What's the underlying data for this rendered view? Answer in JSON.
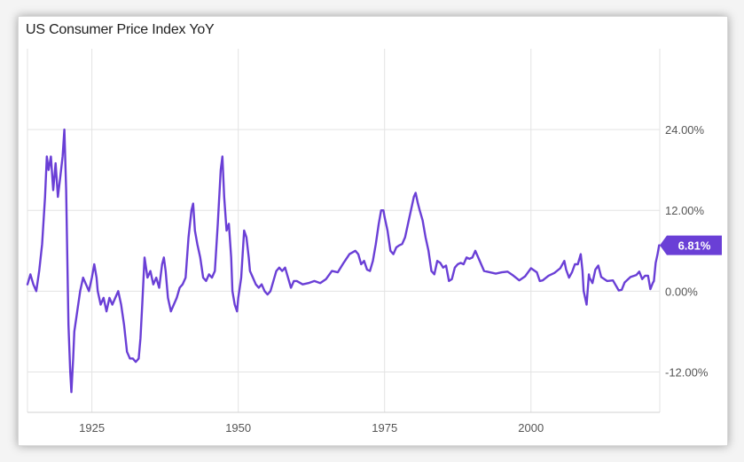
{
  "chart_data": {
    "type": "line",
    "title": "US Consumer Price Index YoY",
    "xlabel": "",
    "ylabel": "",
    "xlim": [
      1914,
      2022
    ],
    "ylim": [
      -18,
      36
    ],
    "x_ticks": [
      1925,
      1950,
      1975,
      2000
    ],
    "y_ticks": [
      -12,
      0,
      12,
      24
    ],
    "y_tick_labels": [
      "-12.00%",
      "0.00%",
      "12.00%",
      "24.00%"
    ],
    "grid": true,
    "last_value_label": "6.81%",
    "color": "#6a3fd6",
    "series": [
      {
        "values": [
          [
            1914,
            1.0
          ],
          [
            1914.5,
            2.5
          ],
          [
            1915,
            1.0
          ],
          [
            1915.5,
            0.0
          ],
          [
            1916,
            3.0
          ],
          [
            1916.5,
            7.0
          ],
          [
            1917,
            14.0
          ],
          [
            1917.3,
            20.0
          ],
          [
            1917.6,
            18.0
          ],
          [
            1918,
            20.0
          ],
          [
            1918.4,
            15.0
          ],
          [
            1918.8,
            19.0
          ],
          [
            1919.2,
            14.0
          ],
          [
            1919.6,
            17.0
          ],
          [
            1920,
            20.0
          ],
          [
            1920.3,
            24.0
          ],
          [
            1920.6,
            15.0
          ],
          [
            1921,
            -5.0
          ],
          [
            1921.3,
            -12.0
          ],
          [
            1921.5,
            -15.0
          ],
          [
            1921.8,
            -10.0
          ],
          [
            1922,
            -6.0
          ],
          [
            1922.5,
            -3.0
          ],
          [
            1923,
            0.0
          ],
          [
            1923.5,
            2.0
          ],
          [
            1924,
            1.0
          ],
          [
            1924.5,
            0.0
          ],
          [
            1925,
            2.0
          ],
          [
            1925.4,
            4.0
          ],
          [
            1925.8,
            2.0
          ],
          [
            1926,
            0.0
          ],
          [
            1926.5,
            -2.0
          ],
          [
            1927,
            -1.0
          ],
          [
            1927.5,
            -3.0
          ],
          [
            1928,
            -1.0
          ],
          [
            1928.5,
            -2.0
          ],
          [
            1929,
            -1.0
          ],
          [
            1929.5,
            0.0
          ],
          [
            1930,
            -2.0
          ],
          [
            1930.5,
            -5.0
          ],
          [
            1931,
            -9.0
          ],
          [
            1931.5,
            -10.0
          ],
          [
            1932,
            -10.0
          ],
          [
            1932.5,
            -10.5
          ],
          [
            1933,
            -10.0
          ],
          [
            1933.3,
            -7.0
          ],
          [
            1933.6,
            -2.0
          ],
          [
            1934,
            5.0
          ],
          [
            1934.5,
            2.0
          ],
          [
            1935,
            3.0
          ],
          [
            1935.5,
            1.0
          ],
          [
            1936,
            2.0
          ],
          [
            1936.5,
            0.5
          ],
          [
            1937,
            4.0
          ],
          [
            1937.3,
            5.0
          ],
          [
            1937.6,
            3.0
          ],
          [
            1938,
            -1.0
          ],
          [
            1938.5,
            -3.0
          ],
          [
            1939,
            -2.0
          ],
          [
            1939.5,
            -1.0
          ],
          [
            1940,
            0.5
          ],
          [
            1940.5,
            1.0
          ],
          [
            1941,
            2.0
          ],
          [
            1941.5,
            8.0
          ],
          [
            1942,
            12.0
          ],
          [
            1942.3,
            13.0
          ],
          [
            1942.6,
            9.0
          ],
          [
            1943,
            7.0
          ],
          [
            1943.5,
            5.0
          ],
          [
            1944,
            2.0
          ],
          [
            1944.5,
            1.5
          ],
          [
            1945,
            2.5
          ],
          [
            1945.5,
            2.0
          ],
          [
            1946,
            3.0
          ],
          [
            1946.5,
            10.0
          ],
          [
            1947,
            18.0
          ],
          [
            1947.3,
            20.0
          ],
          [
            1947.6,
            14.0
          ],
          [
            1948,
            9.0
          ],
          [
            1948.4,
            10.0
          ],
          [
            1948.8,
            5.0
          ],
          [
            1949,
            0.0
          ],
          [
            1949.4,
            -2.0
          ],
          [
            1949.8,
            -3.0
          ],
          [
            1950,
            -1.0
          ],
          [
            1950.5,
            2.0
          ],
          [
            1951,
            9.0
          ],
          [
            1951.4,
            8.0
          ],
          [
            1951.8,
            5.0
          ],
          [
            1952,
            3.0
          ],
          [
            1952.5,
            2.0
          ],
          [
            1953,
            1.0
          ],
          [
            1953.5,
            0.5
          ],
          [
            1954,
            1.0
          ],
          [
            1954.5,
            0.0
          ],
          [
            1955,
            -0.5
          ],
          [
            1955.5,
            0.0
          ],
          [
            1956,
            1.5
          ],
          [
            1956.5,
            3.0
          ],
          [
            1957,
            3.5
          ],
          [
            1957.5,
            3.0
          ],
          [
            1958,
            3.5
          ],
          [
            1958.5,
            2.0
          ],
          [
            1959,
            0.5
          ],
          [
            1959.5,
            1.5
          ],
          [
            1960,
            1.5
          ],
          [
            1961,
            1.0
          ],
          [
            1962,
            1.2
          ],
          [
            1963,
            1.5
          ],
          [
            1964,
            1.2
          ],
          [
            1965,
            1.8
          ],
          [
            1966,
            3.0
          ],
          [
            1967,
            2.8
          ],
          [
            1968,
            4.2
          ],
          [
            1969,
            5.5
          ],
          [
            1970,
            6.0
          ],
          [
            1970.5,
            5.5
          ],
          [
            1971,
            4.0
          ],
          [
            1971.5,
            4.5
          ],
          [
            1972,
            3.2
          ],
          [
            1972.5,
            3.0
          ],
          [
            1973,
            4.5
          ],
          [
            1973.5,
            7.0
          ],
          [
            1974,
            10.0
          ],
          [
            1974.4,
            12.0
          ],
          [
            1974.8,
            12.0
          ],
          [
            1975,
            11.0
          ],
          [
            1975.5,
            9.0
          ],
          [
            1976,
            6.0
          ],
          [
            1976.5,
            5.5
          ],
          [
            1977,
            6.5
          ],
          [
            1977.5,
            6.8
          ],
          [
            1978,
            7.0
          ],
          [
            1978.5,
            8.0
          ],
          [
            1979,
            10.0
          ],
          [
            1979.5,
            12.0
          ],
          [
            1980,
            14.0
          ],
          [
            1980.3,
            14.6
          ],
          [
            1980.7,
            13.0
          ],
          [
            1981,
            12.0
          ],
          [
            1981.5,
            10.5
          ],
          [
            1982,
            8.0
          ],
          [
            1982.5,
            6.0
          ],
          [
            1983,
            3.0
          ],
          [
            1983.5,
            2.5
          ],
          [
            1984,
            4.5
          ],
          [
            1984.5,
            4.2
          ],
          [
            1985,
            3.5
          ],
          [
            1985.5,
            3.8
          ],
          [
            1986,
            1.5
          ],
          [
            1986.5,
            1.8
          ],
          [
            1987,
            3.5
          ],
          [
            1987.5,
            4.0
          ],
          [
            1988,
            4.2
          ],
          [
            1988.5,
            4.0
          ],
          [
            1989,
            5.0
          ],
          [
            1989.5,
            4.8
          ],
          [
            1990,
            5.0
          ],
          [
            1990.5,
            6.0
          ],
          [
            1991,
            5.0
          ],
          [
            1991.5,
            4.0
          ],
          [
            1992,
            3.0
          ],
          [
            1993,
            2.8
          ],
          [
            1994,
            2.6
          ],
          [
            1995,
            2.8
          ],
          [
            1996,
            2.9
          ],
          [
            1997,
            2.3
          ],
          [
            1998,
            1.6
          ],
          [
            1999,
            2.2
          ],
          [
            2000,
            3.4
          ],
          [
            2001,
            2.8
          ],
          [
            2001.5,
            1.5
          ],
          [
            2002,
            1.6
          ],
          [
            2003,
            2.3
          ],
          [
            2004,
            2.7
          ],
          [
            2005,
            3.4
          ],
          [
            2005.7,
            4.5
          ],
          [
            2006,
            3.2
          ],
          [
            2006.5,
            2.0
          ],
          [
            2007,
            2.8
          ],
          [
            2007.5,
            4.0
          ],
          [
            2008,
            4.0
          ],
          [
            2008.5,
            5.5
          ],
          [
            2008.8,
            3.0
          ],
          [
            2009,
            0.0
          ],
          [
            2009.5,
            -2.0
          ],
          [
            2009.9,
            2.5
          ],
          [
            2010,
            2.0
          ],
          [
            2010.5,
            1.2
          ],
          [
            2011,
            3.2
          ],
          [
            2011.5,
            3.8
          ],
          [
            2012,
            2.1
          ],
          [
            2013,
            1.5
          ],
          [
            2014,
            1.6
          ],
          [
            2015,
            0.1
          ],
          [
            2015.5,
            0.2
          ],
          [
            2016,
            1.3
          ],
          [
            2017,
            2.1
          ],
          [
            2018,
            2.4
          ],
          [
            2018.5,
            2.9
          ],
          [
            2019,
            1.8
          ],
          [
            2019.5,
            2.3
          ],
          [
            2020,
            2.3
          ],
          [
            2020.4,
            0.3
          ],
          [
            2020.8,
            1.2
          ],
          [
            2021,
            1.5
          ],
          [
            2021.3,
            4.2
          ],
          [
            2021.6,
            5.4
          ],
          [
            2021.9,
            6.81
          ]
        ]
      }
    ]
  }
}
